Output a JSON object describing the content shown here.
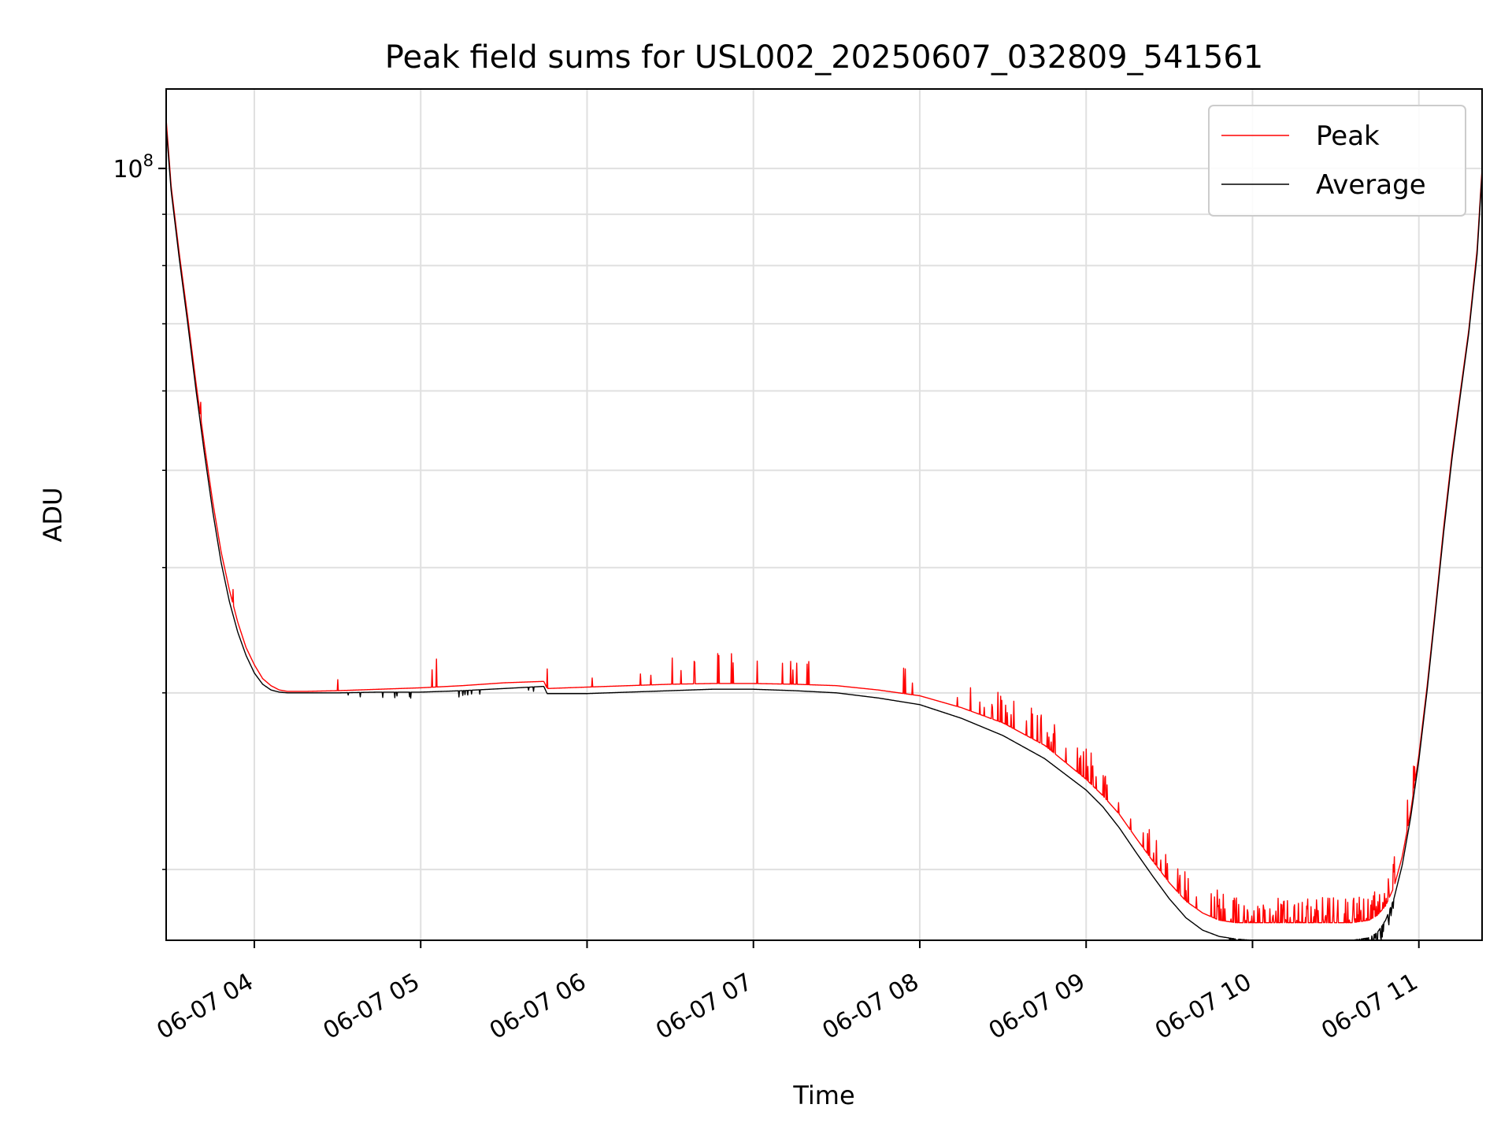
{
  "chart_data": {
    "type": "line",
    "title": "Peak field sums for USL002_20250607_032809_541561",
    "xlabel": "Time",
    "ylabel": "ADU",
    "y_scale": "log",
    "grid": true,
    "legend_position": "top-right",
    "x_tick_labels": [
      "06-07 04",
      "06-07 05",
      "06-07 06",
      "06-07 07",
      "06-07 08",
      "06-07 09",
      "06-07 10",
      "06-07 11"
    ],
    "x_ticks_hours": [
      4,
      5,
      6,
      7,
      8,
      9,
      10,
      11
    ],
    "xlim_hours": [
      3.47,
      11.38
    ],
    "y_tick_labels": [
      {
        "base": "10",
        "exp": "8"
      }
    ],
    "y_major_ticks": [
      100000000
    ],
    "y_minor_ticks": [
      20000000,
      30000000,
      40000000,
      50000000,
      60000000,
      70000000,
      80000000,
      90000000
    ],
    "ylim": [
      17000000,
      120000000
    ],
    "series": [
      {
        "name": "Peak",
        "color": "#ff0000",
        "x_hours": [
          3.47,
          3.5,
          3.55,
          3.6,
          3.65,
          3.7,
          3.75,
          3.8,
          3.85,
          3.9,
          3.95,
          4.0,
          4.05,
          4.1,
          4.15,
          4.2,
          4.3,
          4.5,
          4.75,
          5.0,
          5.25,
          5.5,
          5.74,
          5.76,
          6.0,
          6.25,
          6.5,
          6.75,
          7.0,
          7.25,
          7.5,
          7.75,
          8.0,
          8.25,
          8.5,
          8.75,
          9.0,
          9.1,
          9.2,
          9.3,
          9.4,
          9.5,
          9.6,
          9.7,
          9.8,
          9.9,
          10.0,
          10.1,
          10.2,
          10.3,
          10.4,
          10.5,
          10.6,
          10.7,
          10.75,
          10.8,
          10.85,
          10.9,
          10.95,
          11.0,
          11.05,
          11.1,
          11.15,
          11.2,
          11.25,
          11.3,
          11.35,
          11.38
        ],
        "y": [
          112000000,
          96000000,
          82000000,
          71000000,
          61000000,
          53000000,
          46500000,
          41500000,
          38000000,
          35300000,
          33300000,
          32000000,
          31000000,
          30500000,
          30200000,
          30100000,
          30100000,
          30150000,
          30250000,
          30350000,
          30500000,
          30700000,
          30800000,
          30300000,
          30400000,
          30500000,
          30600000,
          30650000,
          30650000,
          30600000,
          30500000,
          30200000,
          29800000,
          29000000,
          28000000,
          26600000,
          24600000,
          23700000,
          22700000,
          21500000,
          20400000,
          19400000,
          18600000,
          18100000,
          17800000,
          17700000,
          17700000,
          17700000,
          17700000,
          17700000,
          17700000,
          17700000,
          17700000,
          17800000,
          18000000,
          18400000,
          19200000,
          20600000,
          22800000,
          26000000,
          30500000,
          36500000,
          44000000,
          52000000,
          60000000,
          69000000,
          83000000,
          100000000
        ]
      },
      {
        "name": "Average",
        "color": "#000000",
        "x_hours": [
          3.47,
          3.5,
          3.55,
          3.6,
          3.65,
          3.7,
          3.75,
          3.8,
          3.85,
          3.9,
          3.95,
          4.0,
          4.05,
          4.1,
          4.15,
          4.2,
          4.3,
          4.5,
          4.75,
          5.0,
          5.25,
          5.5,
          5.74,
          5.76,
          6.0,
          6.25,
          6.5,
          6.75,
          7.0,
          7.25,
          7.5,
          7.75,
          8.0,
          8.25,
          8.5,
          8.75,
          9.0,
          9.1,
          9.2,
          9.3,
          9.4,
          9.5,
          9.6,
          9.7,
          9.8,
          9.9,
          10.0,
          10.1,
          10.2,
          10.3,
          10.4,
          10.5,
          10.6,
          10.7,
          10.75,
          10.8,
          10.85,
          10.9,
          10.95,
          11.0,
          11.05,
          11.1,
          11.15,
          11.2,
          11.25,
          11.3,
          11.35,
          11.38
        ],
        "y": [
          110000000,
          95000000,
          81000000,
          70000000,
          60000000,
          52000000,
          45500000,
          40500000,
          37000000,
          34500000,
          32700000,
          31400000,
          30600000,
          30200000,
          30050000,
          30000000,
          30000000,
          30000000,
          30050000,
          30050000,
          30150000,
          30300000,
          30450000,
          29950000,
          29950000,
          30050000,
          30150000,
          30250000,
          30250000,
          30150000,
          30000000,
          29650000,
          29200000,
          28300000,
          27200000,
          25800000,
          24000000,
          23100000,
          22000000,
          20800000,
          19700000,
          18700000,
          17900000,
          17400000,
          17150000,
          17050000,
          17000000,
          17000000,
          17000000,
          17000000,
          17000000,
          17000000,
          17000000,
          17100000,
          17300000,
          17800000,
          18700000,
          20200000,
          22500000,
          25700000,
          30200000,
          36200000,
          43500000,
          51500000,
          59500000,
          68500000,
          82000000,
          99000000
        ]
      }
    ]
  }
}
